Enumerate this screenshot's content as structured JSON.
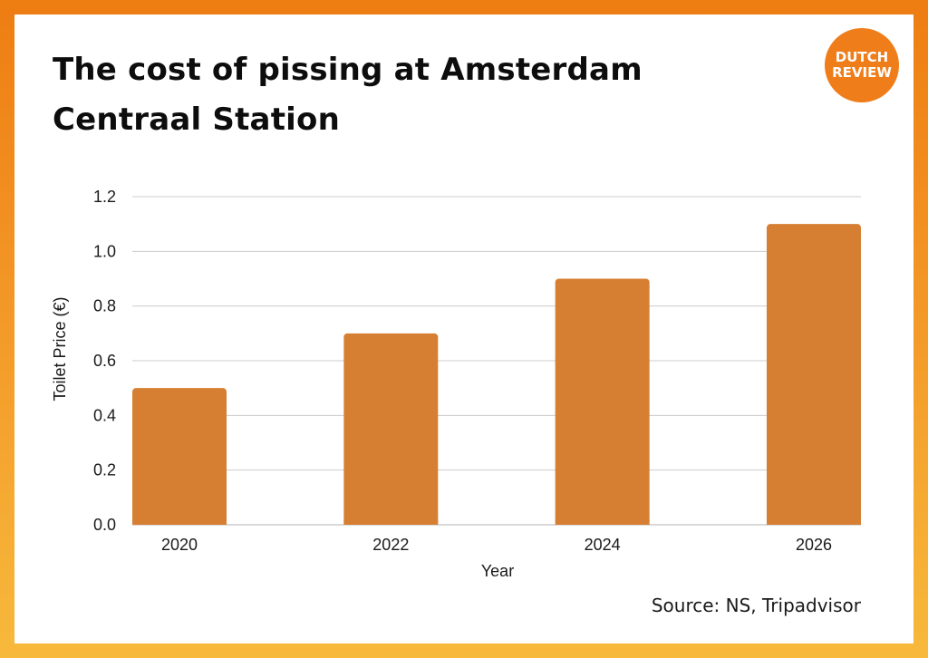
{
  "title": "The cost of pissing at Amsterdam Centraal Station",
  "logo": {
    "line1": "DUTCH",
    "line2": "REVIEW"
  },
  "source": "Source: NS, Tripadvisor",
  "colors": {
    "bar": "#d67f32",
    "grid": "#cccccc",
    "text": "#1a1a1a",
    "logo": "#ef7d1a"
  },
  "chart_data": {
    "type": "bar",
    "categories": [
      "2020",
      "2022",
      "2024",
      "2026"
    ],
    "values": [
      0.5,
      0.7,
      0.9,
      1.1
    ],
    "title": "The cost of pissing at Amsterdam Centraal Station",
    "xlabel": "Year",
    "ylabel": "Toilet Price (€)",
    "ylim": [
      0,
      1.2
    ],
    "yticks": [
      "0.0",
      "0.2",
      "0.4",
      "0.6",
      "0.8",
      "1.0",
      "1.2"
    ],
    "grid": true,
    "legend": "none"
  }
}
